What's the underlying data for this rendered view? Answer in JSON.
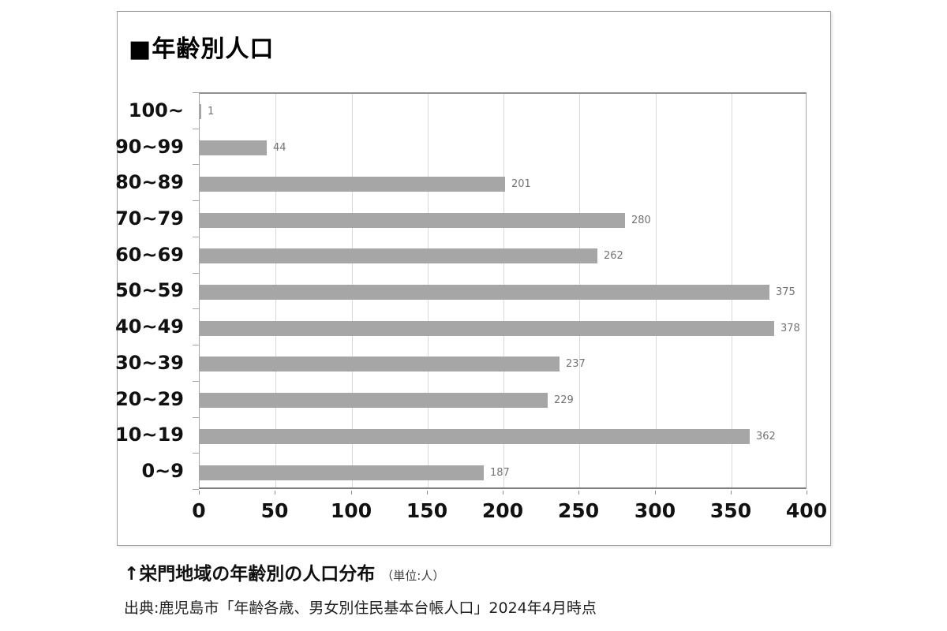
{
  "panel": {
    "title": "■年齢別人口"
  },
  "chart_data": {
    "type": "bar",
    "orientation": "horizontal",
    "title": "■年齢別人口",
    "categories": [
      "100~",
      "90~99",
      "80~89",
      "70~79",
      "60~69",
      "50~59",
      "40~49",
      "30~39",
      "20~29",
      "10~19",
      "0~9"
    ],
    "values": [
      1,
      44,
      201,
      280,
      262,
      375,
      378,
      237,
      229,
      362,
      187
    ],
    "xlabel": "",
    "ylabel": "",
    "xlim": [
      0,
      400
    ],
    "xticks": [
      0,
      50,
      100,
      150,
      200,
      250,
      300,
      350,
      400
    ],
    "grid": true,
    "legend": "none",
    "data_labels": true,
    "colors": {
      "bar": "#a6a6a6",
      "value_label": "#737373",
      "gridline": "#d9d9d9",
      "axis_label": "#111111"
    }
  },
  "caption": {
    "heading": "↑栄門地域の年齢別の人口分布",
    "unit_note": "（単位:人）",
    "source": "出典:鹿児島市「年齢各歳、男女別住民基本台帳人口」2024年4月時点"
  }
}
